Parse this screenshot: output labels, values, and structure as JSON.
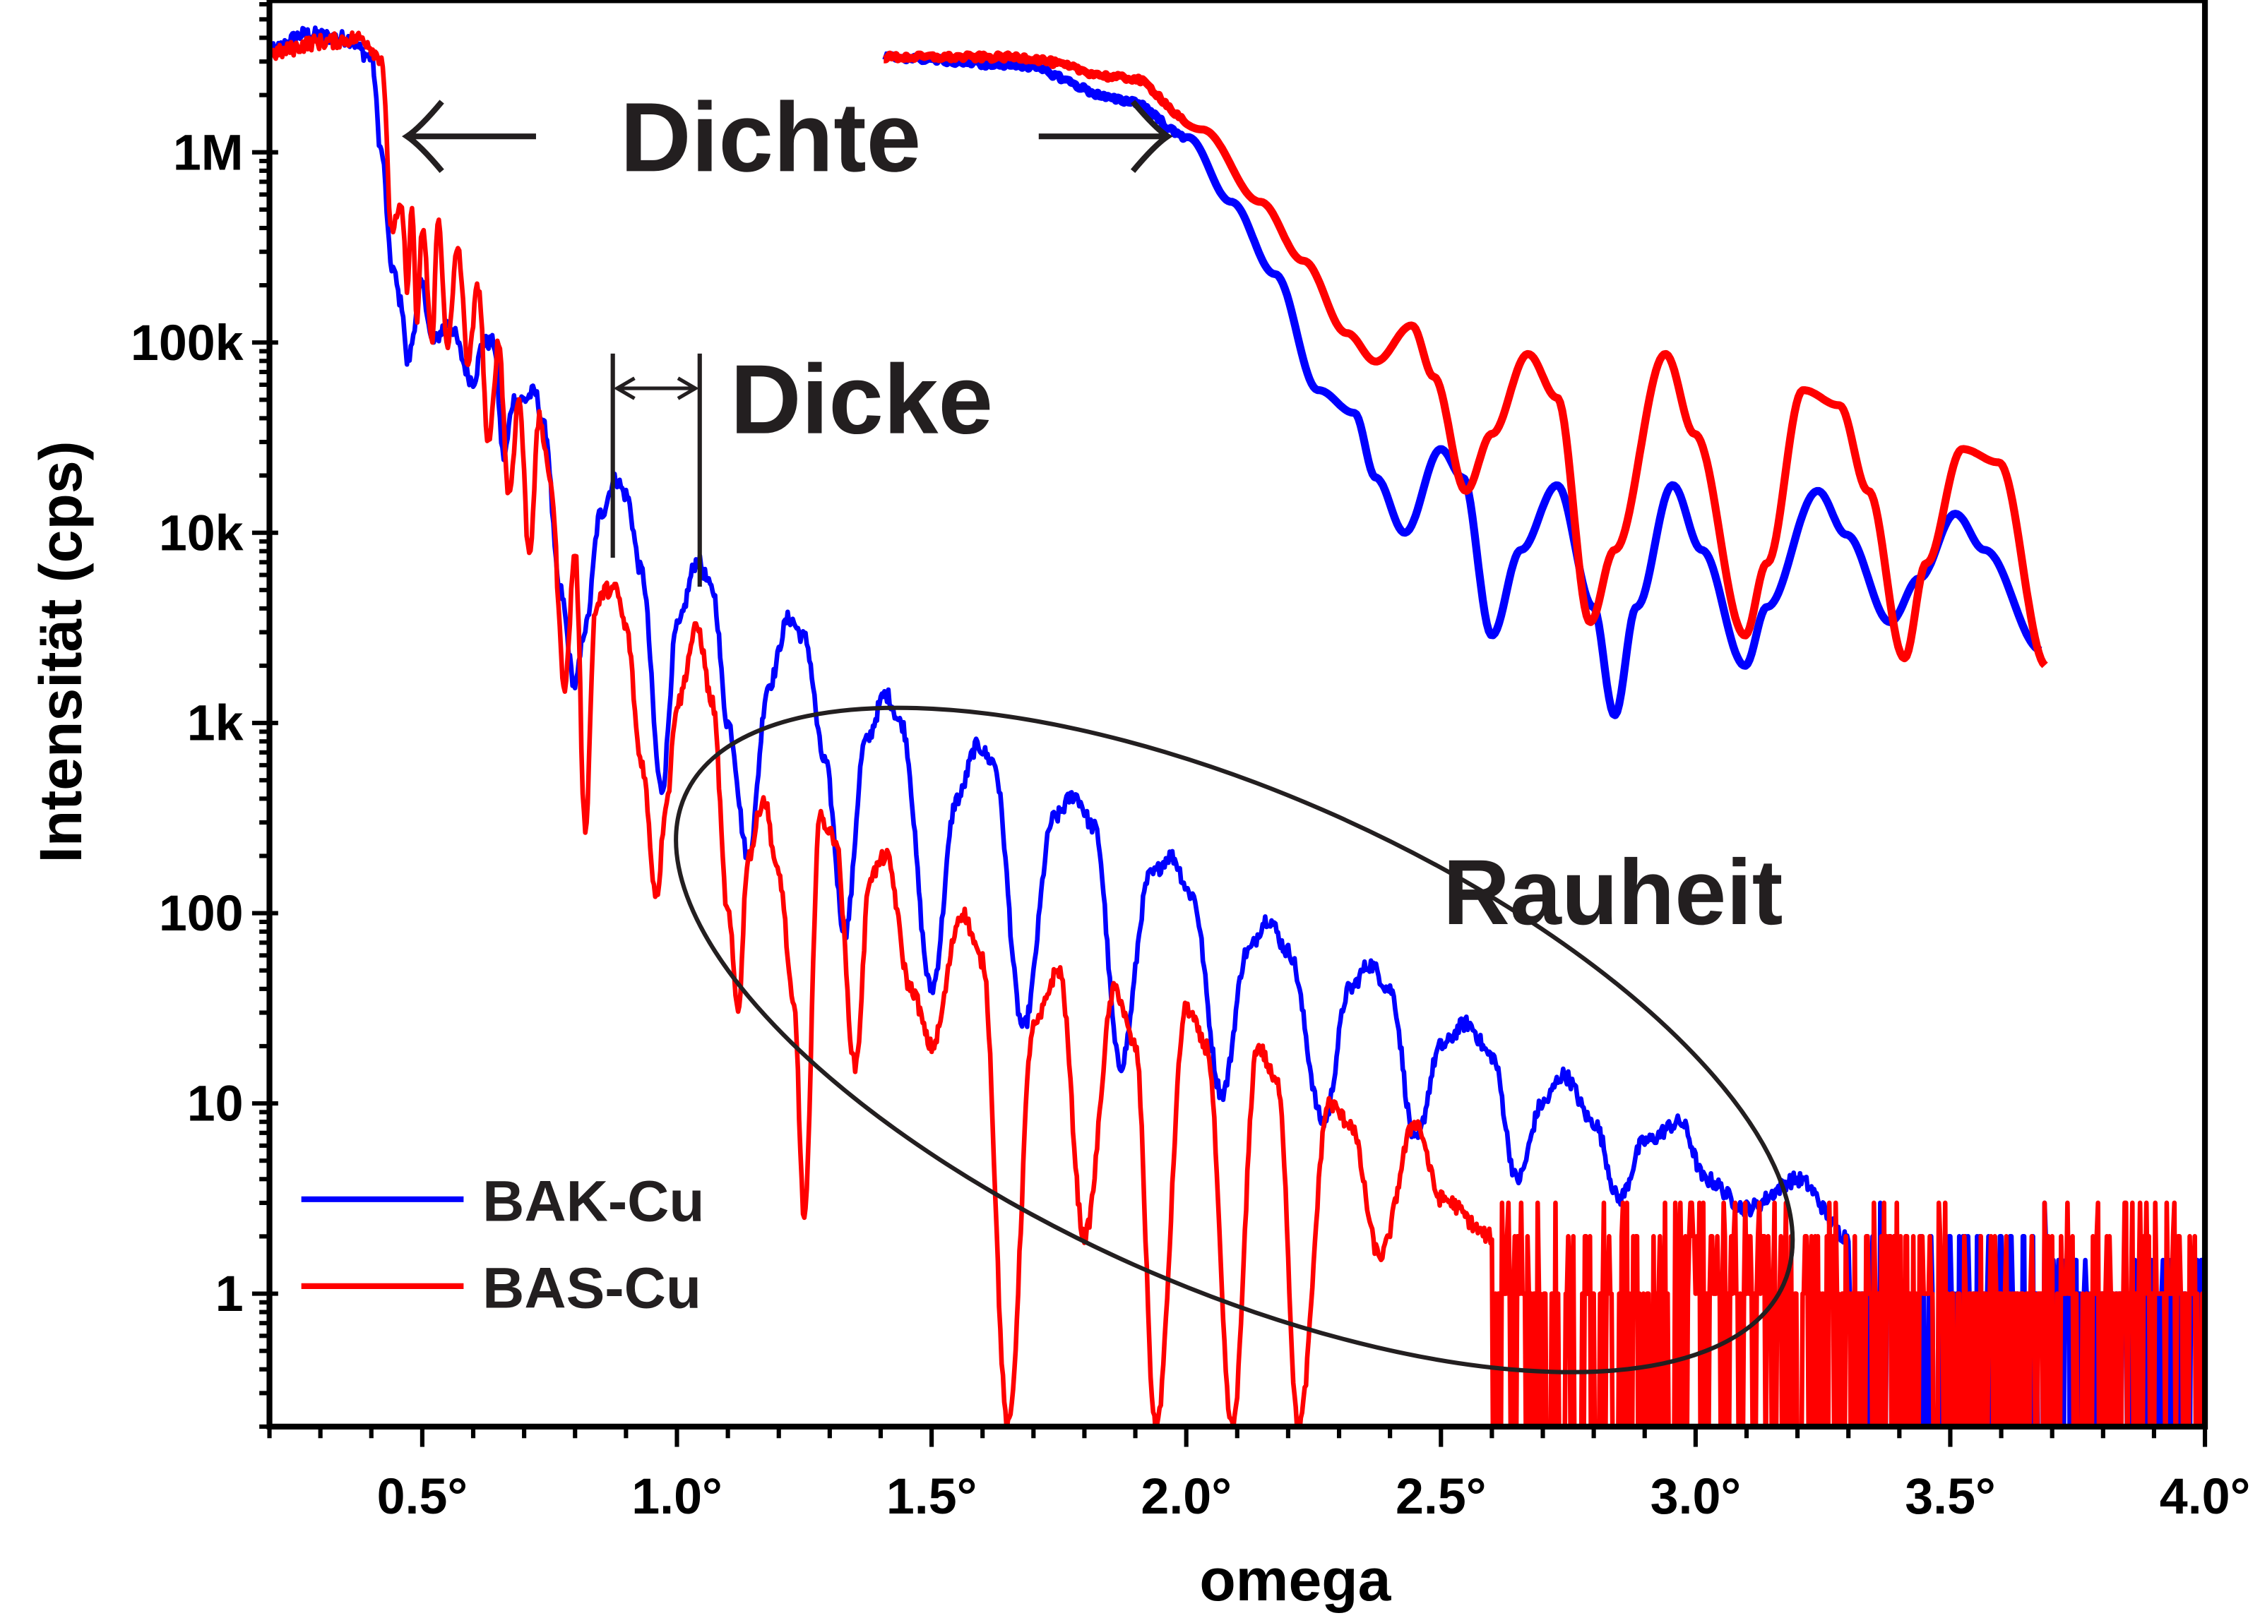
{
  "chart_data": {
    "type": "line",
    "xlabel": "omega",
    "ylabel": "Intensität (cps)",
    "xlim": [
      0.2,
      4.0
    ],
    "ylim": [
      0.2,
      6300000
    ],
    "yscale": "log",
    "x_tick_values": [
      0.5,
      1.0,
      1.5,
      2.0,
      2.5,
      3.0,
      3.5,
      4.0
    ],
    "x_tick_labels": [
      "0.5°",
      "1.0°",
      "1.5°",
      "2.0°",
      "2.5°",
      "3.0°",
      "3.5°",
      "4.0°"
    ],
    "y_tick_values": [
      1,
      10,
      100,
      1000,
      10000,
      100000,
      1000000
    ],
    "y_tick_labels": [
      "1",
      "10",
      "100",
      "1k",
      "10k",
      "100k",
      "1M"
    ],
    "grid": false,
    "legend_position": "bottom-left",
    "colors": {
      "BAK-Cu": "#0000ff",
      "BAS-Cu": "#ff0000",
      "annotation": "#231f20"
    },
    "series": [
      {
        "name": "BAK-Cu",
        "color": "#0000ff",
        "points_log10": [
          [
            0.2,
            6.53
          ],
          [
            0.27,
            6.62
          ],
          [
            0.35,
            6.6
          ],
          [
            0.4,
            6.5
          ],
          [
            0.42,
            6.0
          ],
          [
            0.44,
            5.4
          ],
          [
            0.46,
            5.2
          ],
          [
            0.47,
            4.9
          ],
          [
            0.5,
            5.3
          ],
          [
            0.52,
            5.0
          ],
          [
            0.55,
            5.1
          ],
          [
            0.6,
            4.8
          ],
          [
            0.62,
            5.0
          ],
          [
            0.64,
            5.0
          ],
          [
            0.66,
            4.4
          ],
          [
            0.68,
            4.7
          ],
          [
            0.7,
            4.7
          ],
          [
            0.72,
            4.74
          ],
          [
            0.74,
            4.55
          ],
          [
            0.77,
            3.7
          ],
          [
            0.8,
            3.2
          ],
          [
            0.82,
            3.5
          ],
          [
            0.85,
            4.1
          ],
          [
            0.88,
            4.28
          ],
          [
            0.9,
            4.2
          ],
          [
            0.93,
            3.8
          ],
          [
            0.97,
            2.65
          ],
          [
            1.0,
            3.5
          ],
          [
            1.04,
            3.85
          ],
          [
            1.07,
            3.7
          ],
          [
            1.1,
            3.0
          ],
          [
            1.14,
            2.3
          ],
          [
            1.18,
            3.2
          ],
          [
            1.22,
            3.55
          ],
          [
            1.25,
            3.45
          ],
          [
            1.29,
            2.8
          ],
          [
            1.33,
            1.9
          ],
          [
            1.37,
            2.9
          ],
          [
            1.41,
            3.15
          ],
          [
            1.44,
            3.0
          ],
          [
            1.5,
            1.6
          ],
          [
            1.55,
            2.6
          ],
          [
            1.59,
            2.88
          ],
          [
            1.62,
            2.8
          ],
          [
            1.68,
            1.4
          ],
          [
            1.74,
            2.5
          ],
          [
            1.78,
            2.62
          ],
          [
            1.82,
            2.45
          ],
          [
            1.87,
            1.2
          ],
          [
            1.93,
            2.2
          ],
          [
            1.97,
            2.3
          ],
          [
            2.01,
            2.1
          ],
          [
            2.07,
            1.05
          ],
          [
            2.12,
            1.8
          ],
          [
            2.16,
            1.97
          ],
          [
            2.2,
            1.8
          ],
          [
            2.27,
            0.9
          ],
          [
            2.32,
            1.6
          ],
          [
            2.36,
            1.73
          ],
          [
            2.4,
            1.6
          ],
          [
            2.45,
            0.8
          ],
          [
            2.5,
            1.3
          ],
          [
            2.55,
            1.42
          ],
          [
            2.6,
            1.25
          ],
          [
            2.65,
            0.6
          ],
          [
            2.7,
            1.0
          ],
          [
            2.74,
            1.15
          ],
          [
            2.8,
            0.9
          ],
          [
            2.85,
            0.5
          ],
          [
            2.9,
            0.8
          ],
          [
            2.97,
            0.9
          ],
          [
            3.02,
            0.6
          ],
          [
            3.1,
            0.45
          ],
          [
            3.2,
            0.6
          ],
          [
            3.3,
            0.3
          ]
        ],
        "noise_floor_from": 3.3
      },
      {
        "name": "BAS-Cu",
        "color": "#ff0000",
        "points_log10": [
          [
            0.2,
            6.52
          ],
          [
            0.3,
            6.58
          ],
          [
            0.38,
            6.6
          ],
          [
            0.42,
            6.5
          ],
          [
            0.44,
            5.6
          ],
          [
            0.46,
            5.7
          ],
          [
            0.47,
            5.3
          ],
          [
            0.48,
            5.7
          ],
          [
            0.49,
            5.1
          ],
          [
            0.5,
            5.6
          ],
          [
            0.52,
            5.0
          ],
          [
            0.53,
            5.65
          ],
          [
            0.55,
            5.0
          ],
          [
            0.57,
            5.5
          ],
          [
            0.59,
            4.9
          ],
          [
            0.61,
            5.3
          ],
          [
            0.63,
            4.45
          ],
          [
            0.65,
            5.0
          ],
          [
            0.67,
            4.2
          ],
          [
            0.69,
            4.7
          ],
          [
            0.71,
            3.9
          ],
          [
            0.73,
            4.6
          ],
          [
            0.75,
            4.3
          ],
          [
            0.78,
            3.2
          ],
          [
            0.8,
            3.9
          ],
          [
            0.82,
            2.45
          ],
          [
            0.84,
            3.6
          ],
          [
            0.86,
            3.7
          ],
          [
            0.88,
            3.7
          ],
          [
            0.9,
            3.5
          ],
          [
            0.93,
            2.8
          ],
          [
            0.96,
            2.1
          ],
          [
            0.98,
            2.6
          ],
          [
            1.0,
            3.1
          ],
          [
            1.04,
            3.5
          ],
          [
            1.07,
            3.1
          ],
          [
            1.1,
            2.0
          ],
          [
            1.12,
            1.5
          ],
          [
            1.14,
            2.3
          ],
          [
            1.17,
            2.6
          ],
          [
            1.2,
            2.2
          ],
          [
            1.23,
            1.5
          ],
          [
            1.25,
            0.4
          ],
          [
            1.28,
            2.5
          ],
          [
            1.31,
            2.4
          ],
          [
            1.35,
            1.2
          ],
          [
            1.38,
            2.2
          ],
          [
            1.41,
            2.3
          ],
          [
            1.46,
            1.6
          ],
          [
            1.5,
            1.3
          ],
          [
            1.56,
            2.0
          ],
          [
            1.6,
            1.75
          ],
          [
            1.65,
            -0.7
          ],
          [
            1.7,
            1.4
          ],
          [
            1.75,
            1.7
          ],
          [
            1.8,
            0.3
          ],
          [
            1.86,
            1.6
          ],
          [
            1.9,
            1.3
          ],
          [
            1.94,
            -0.7
          ],
          [
            2.0,
            1.5
          ],
          [
            2.04,
            1.3
          ],
          [
            2.09,
            -0.7
          ],
          [
            2.14,
            1.3
          ],
          [
            2.18,
            1.1
          ],
          [
            2.22,
            -0.7
          ],
          [
            2.28,
            1.0
          ],
          [
            2.32,
            0.9
          ],
          [
            2.38,
            0.2
          ],
          [
            2.45,
            0.9
          ],
          [
            2.5,
            0.5
          ],
          [
            2.6,
            0.3
          ]
        ],
        "noise_floor_from": 2.6
      }
    ],
    "inset": {
      "description_label": "Dichte",
      "series": [
        {
          "name": "BAK-Cu",
          "color": "#0000ff",
          "points_log10": [
            [
              1.406,
              6.5
            ],
            [
              1.661,
              6.46
            ],
            [
              1.889,
              6.27
            ],
            [
              2.003,
              6.08
            ],
            [
              2.088,
              5.74
            ],
            [
              2.174,
              5.36
            ],
            [
              2.259,
              4.75
            ],
            [
              2.33,
              4.63
            ],
            [
              2.372,
              4.29
            ],
            [
              2.429,
              4.0
            ],
            [
              2.5,
              4.44
            ],
            [
              2.543,
              4.29
            ],
            [
              2.6,
              3.46
            ],
            [
              2.657,
              3.91
            ],
            [
              2.728,
              4.25
            ],
            [
              2.799,
              3.61
            ],
            [
              2.841,
              3.04
            ],
            [
              2.884,
              3.61
            ],
            [
              2.955,
              4.25
            ],
            [
              3.012,
              3.91
            ],
            [
              3.097,
              3.3
            ],
            [
              3.14,
              3.61
            ],
            [
              3.24,
              4.22
            ],
            [
              3.296,
              3.99
            ],
            [
              3.382,
              3.53
            ],
            [
              3.439,
              3.76
            ],
            [
              3.51,
              4.1
            ],
            [
              3.567,
              3.91
            ],
            [
              3.68,
              3.38
            ]
          ]
        },
        {
          "name": "BAS-Cu",
          "color": "#ff0000",
          "points_log10": [
            [
              1.406,
              6.5
            ],
            [
              1.661,
              6.5
            ],
            [
              1.889,
              6.39
            ],
            [
              2.031,
              6.12
            ],
            [
              2.145,
              5.74
            ],
            [
              2.23,
              5.43
            ],
            [
              2.315,
              5.05
            ],
            [
              2.372,
              4.9
            ],
            [
              2.443,
              5.09
            ],
            [
              2.486,
              4.82
            ],
            [
              2.549,
              4.22
            ],
            [
              2.6,
              4.52
            ],
            [
              2.671,
              4.94
            ],
            [
              2.728,
              4.71
            ],
            [
              2.793,
              3.53
            ],
            [
              2.841,
              3.91
            ],
            [
              2.941,
              4.94
            ],
            [
              2.998,
              4.52
            ],
            [
              3.097,
              3.46
            ],
            [
              3.14,
              3.84
            ],
            [
              3.211,
              4.75
            ],
            [
              3.282,
              4.67
            ],
            [
              3.339,
              4.22
            ],
            [
              3.41,
              3.34
            ],
            [
              3.453,
              3.84
            ],
            [
              3.524,
              4.44
            ],
            [
              3.595,
              4.37
            ],
            [
              3.689,
              3.3
            ]
          ]
        }
      ]
    },
    "annotations": [
      "Dichte",
      "Dicke",
      "Rauheit"
    ]
  }
}
